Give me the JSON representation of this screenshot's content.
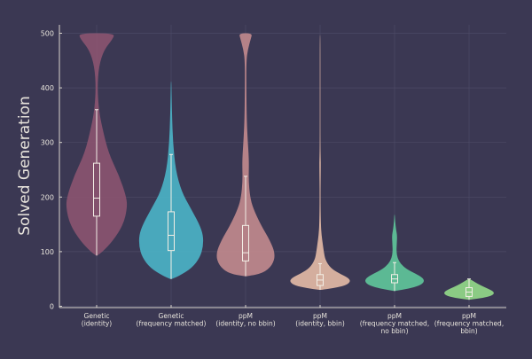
{
  "colors": {
    "background": "#3b3853",
    "axis": "#d8d4cc",
    "grid": "#4d4a66",
    "box": "#f3efe6"
  },
  "chart_data": {
    "type": "violin",
    "xlabel": "",
    "ylabel": "Solved Generation",
    "ylim": [
      0,
      510
    ],
    "yticks": [
      0,
      100,
      200,
      300,
      400,
      500
    ],
    "grid": true,
    "legend": "none",
    "categories": [
      [
        "Genetic",
        "(identity)"
      ],
      [
        "Genetic",
        "(frequency matched)"
      ],
      [
        "ppM",
        "(identity, no bbin)"
      ],
      [
        "ppM",
        "(identity, bbin)"
      ],
      [
        "ppM",
        "(frequency matched,",
        "no bbin)"
      ],
      [
        "ppM",
        "(frequency matched,",
        "bbin)"
      ]
    ],
    "series": [
      {
        "color": "#8a5470",
        "density_y": [
          93,
          100,
          120,
          150,
          180,
          200,
          240,
          280,
          330,
          360,
          400,
          440,
          470,
          490,
          500
        ],
        "density_halfwidth": [
          0.01,
          0.08,
          0.22,
          0.36,
          0.41,
          0.4,
          0.3,
          0.16,
          0.07,
          0.03,
          0.01,
          0.03,
          0.1,
          0.22,
          0.24
        ],
        "box": {
          "whisker_low": 93,
          "q1": 165,
          "median": 198,
          "q3": 262,
          "whisker_high": 360
        }
      },
      {
        "color": "#4bb2c6",
        "density_y": [
          50,
          55,
          70,
          90,
          110,
          130,
          150,
          180,
          210,
          250,
          300,
          350,
          390,
          412
        ],
        "density_halfwidth": [
          0.01,
          0.1,
          0.28,
          0.39,
          0.43,
          0.43,
          0.38,
          0.26,
          0.14,
          0.06,
          0.025,
          0.012,
          0.006,
          0.003
        ],
        "box": {
          "whisker_low": 50,
          "q1": 102,
          "median": 130,
          "q3": 173,
          "whisker_high": 278
        }
      },
      {
        "color": "#c0898d",
        "density_y": [
          55,
          60,
          75,
          95,
          120,
          150,
          180,
          200,
          230,
          260,
          280,
          300,
          340,
          400,
          450,
          470,
          490,
          500
        ],
        "density_halfwidth": [
          0.01,
          0.23,
          0.36,
          0.4,
          0.33,
          0.2,
          0.1,
          0.06,
          0.04,
          0.045,
          0.04,
          0.03,
          0.015,
          0.01,
          0.01,
          0.03,
          0.07,
          0.09
        ],
        "box": {
          "whisker_low": 55,
          "q1": 83,
          "median": 98,
          "q3": 148,
          "whisker_high": 238
        }
      },
      {
        "color": "#e2b8a5",
        "density_y": [
          30,
          33,
          38,
          45,
          52,
          60,
          70,
          85,
          100,
          115,
          130,
          150,
          200,
          260,
          270,
          300,
          400,
          497
        ],
        "density_halfwidth": [
          0.01,
          0.17,
          0.34,
          0.41,
          0.38,
          0.26,
          0.14,
          0.07,
          0.05,
          0.035,
          0.02,
          0.01,
          0.005,
          0.01,
          0.008,
          0.004,
          0.004,
          0.004
        ],
        "box": {
          "whisker_low": 30,
          "q1": 38,
          "median": 48,
          "q3": 58,
          "whisker_high": 78
        }
      },
      {
        "color": "#5fc49a",
        "density_y": [
          28,
          32,
          38,
          45,
          52,
          60,
          68,
          78,
          88,
          100,
          115,
          130,
          140,
          155,
          168
        ],
        "density_halfwidth": [
          0.01,
          0.18,
          0.34,
          0.4,
          0.38,
          0.28,
          0.16,
          0.08,
          0.04,
          0.025,
          0.03,
          0.035,
          0.02,
          0.008,
          0.003
        ],
        "box": {
          "whisker_low": 28,
          "q1": 43,
          "median": 50,
          "q3": 58,
          "whisker_high": 80
        }
      },
      {
        "color": "#93d889",
        "density_y": [
          12,
          15,
          20,
          26,
          32,
          38,
          44,
          50
        ],
        "density_halfwidth": [
          0.01,
          0.18,
          0.32,
          0.34,
          0.26,
          0.16,
          0.08,
          0.01
        ],
        "box": {
          "whisker_low": 12,
          "q1": 18,
          "median": 26,
          "q3": 34,
          "whisker_high": 50
        }
      }
    ]
  }
}
